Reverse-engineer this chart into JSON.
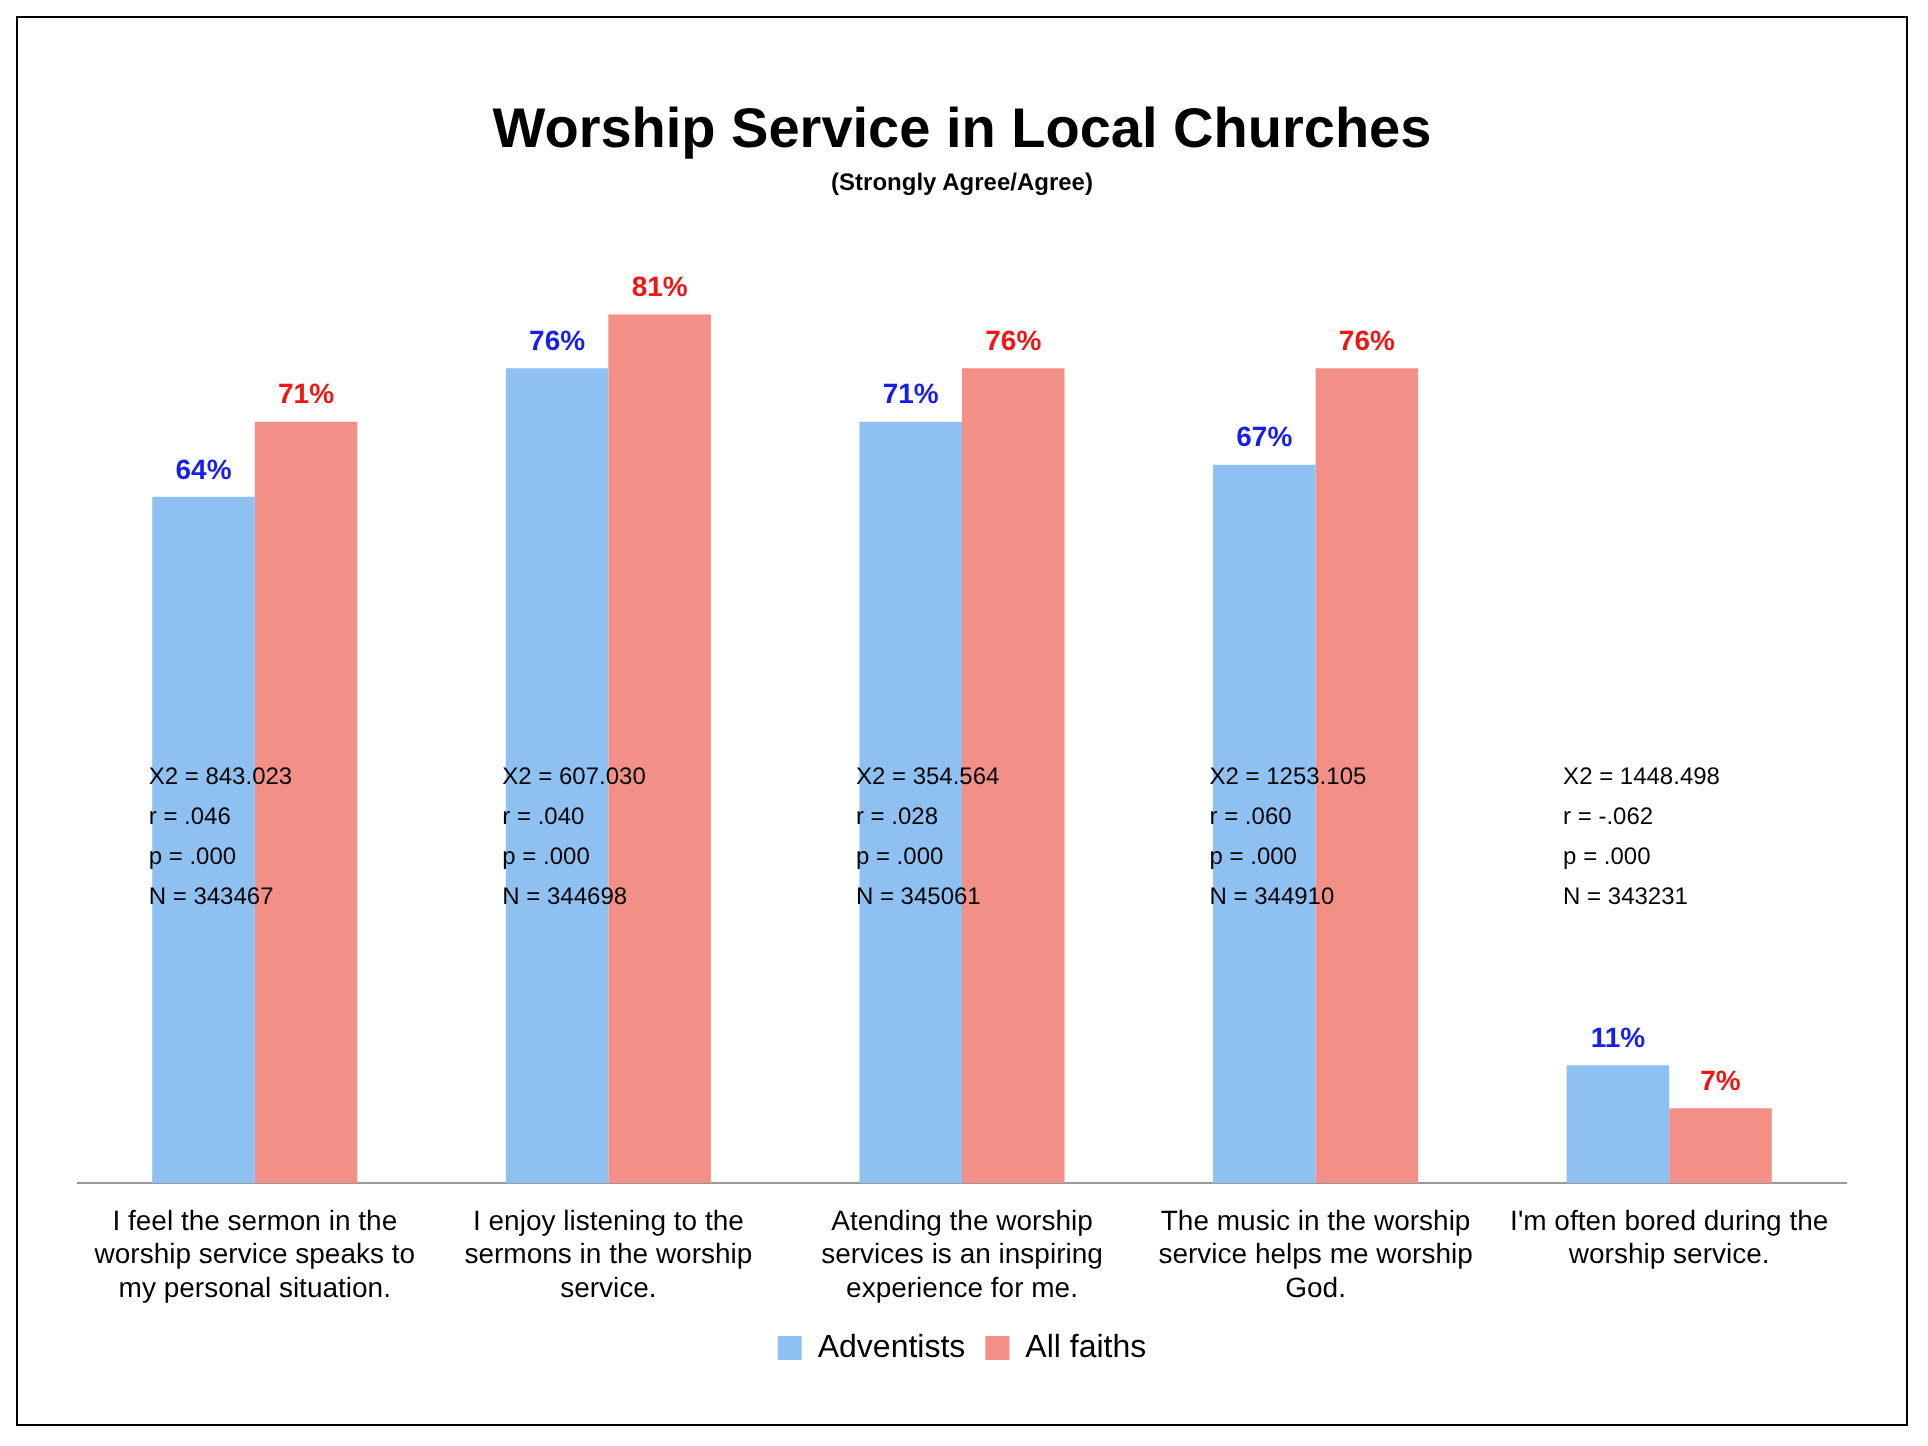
{
  "chart_data": {
    "type": "bar",
    "title": "Worship Service in Local Churches",
    "subtitle": "(Strongly Agree/Agree)",
    "categories": [
      "I feel the sermon in the worship service speaks to my personal situation.",
      "I enjoy listening to the sermons in the worship service.",
      "Atending the worship services is an inspiring experience for me.",
      "The music in the worship service helps me worship God.",
      "I'm often bored during the worship service."
    ],
    "series": [
      {
        "name": "Adventists",
        "color": "#8fc0f2",
        "values": [
          64,
          76,
          71,
          67,
          11
        ],
        "value_labels": [
          "64%",
          "76%",
          "71%",
          "67%",
          "11%"
        ]
      },
      {
        "name": "All faiths",
        "color": "#f29088",
        "values": [
          71,
          81,
          76,
          76,
          7
        ],
        "value_labels": [
          "71%",
          "81%",
          "76%",
          "76%",
          "7%"
        ]
      }
    ],
    "annotations": [
      "X2 = 843.023\nr = .046\np = .000\nN = 343467",
      "X2 = 607.030\nr = .040\np = .000\nN = 344698",
      "X2 = 354.564\nr = .028\np = .000\nN = 345061",
      "X2 = 1253.105\nr = .060\np = .000\nN = 344910",
      "X2 = 1448.498\nr = -.062\np = .000\nN = 343231"
    ],
    "legend": "bottom",
    "grid": false
  }
}
